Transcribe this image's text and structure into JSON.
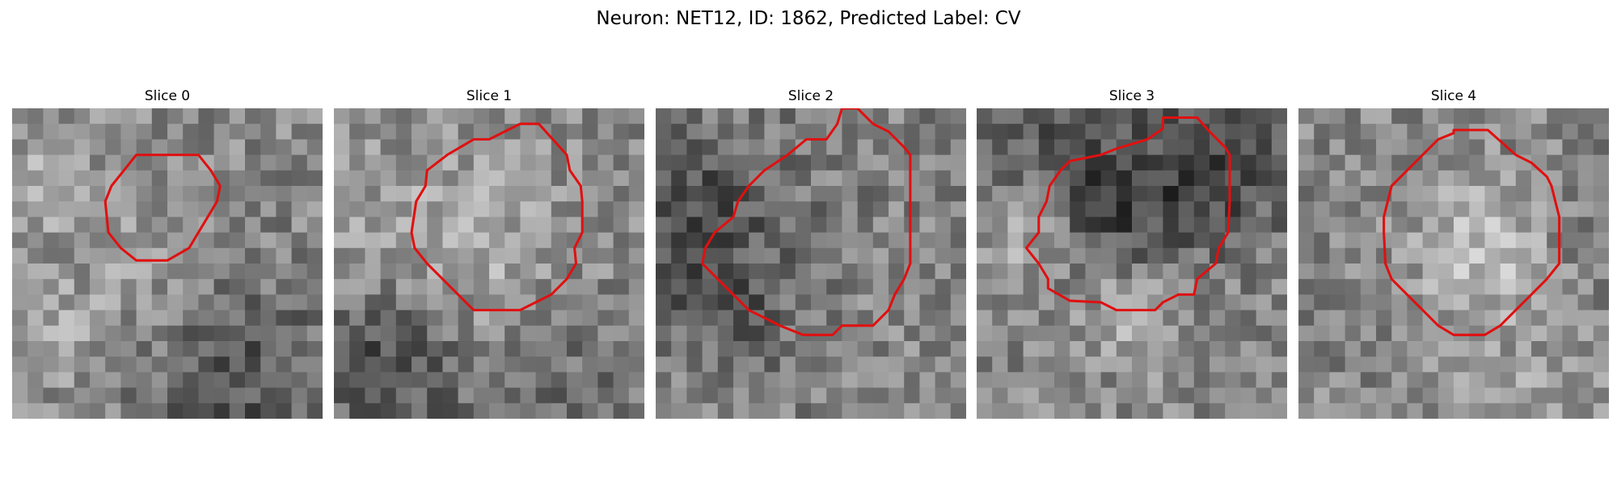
{
  "figure": {
    "title": "Neuron: NET12, ID: 1862, Predicted Label: CV",
    "panels": [
      {
        "title": "Slice 0",
        "seed": 11,
        "contour_color": "#e01010",
        "contour": [
          [
            10,
            3
          ],
          [
            12,
            3
          ],
          [
            12.8,
            4
          ],
          [
            13.4,
            5
          ],
          [
            13.2,
            6
          ],
          [
            12.6,
            7
          ],
          [
            12,
            8
          ],
          [
            11.4,
            9
          ],
          [
            10,
            9.8
          ],
          [
            8,
            9.8
          ],
          [
            7,
            9
          ],
          [
            6.2,
            8
          ],
          [
            6.1,
            7
          ],
          [
            6,
            6
          ],
          [
            6.4,
            5
          ],
          [
            7.2,
            4
          ],
          [
            8,
            3
          ]
        ]
      },
      {
        "title": "Slice 1",
        "seed": 23,
        "contour_color": "#e01010",
        "contour": [
          [
            12,
            1
          ],
          [
            13.2,
            1
          ],
          [
            15,
            3
          ],
          [
            15.2,
            4
          ],
          [
            15.9,
            5
          ],
          [
            16,
            6
          ],
          [
            16,
            8
          ],
          [
            15.5,
            9
          ],
          [
            15.6,
            10
          ],
          [
            15,
            11
          ],
          [
            14,
            12
          ],
          [
            12,
            13
          ],
          [
            9,
            13
          ],
          [
            7,
            11
          ],
          [
            6,
            10
          ],
          [
            5.2,
            9
          ],
          [
            5,
            8
          ],
          [
            5.3,
            6
          ],
          [
            5.9,
            5
          ],
          [
            6,
            4
          ],
          [
            7.3,
            3
          ],
          [
            9,
            2
          ],
          [
            10,
            2
          ]
        ]
      },
      {
        "title": "Slice 2",
        "seed": 37,
        "contour_color": "#e01010",
        "contour": [
          [
            12,
            0
          ],
          [
            13,
            0
          ],
          [
            14,
            1
          ],
          [
            15,
            1.5
          ],
          [
            16,
            2.5
          ],
          [
            16.4,
            3
          ],
          [
            16.4,
            7
          ],
          [
            16.4,
            10
          ],
          [
            16,
            11
          ],
          [
            15.4,
            12
          ],
          [
            15,
            13
          ],
          [
            14,
            14
          ],
          [
            12,
            14
          ],
          [
            11.4,
            14.6
          ],
          [
            9.5,
            14.6
          ],
          [
            8,
            14
          ],
          [
            6,
            13
          ],
          [
            5,
            12
          ],
          [
            4,
            11
          ],
          [
            3,
            10
          ],
          [
            3.2,
            9
          ],
          [
            3.8,
            8
          ],
          [
            5,
            7
          ],
          [
            5.3,
            6
          ],
          [
            6,
            5
          ],
          [
            7,
            4
          ],
          [
            8.5,
            3
          ],
          [
            9.7,
            2
          ],
          [
            11,
            2
          ],
          [
            11.7,
            1
          ]
        ]
      },
      {
        "title": "Slice 3",
        "seed": 53,
        "contour_color": "#e01010",
        "contour": [
          [
            12,
            0.6
          ],
          [
            14.2,
            0.6
          ],
          [
            15,
            1.5
          ],
          [
            16,
            2.5
          ],
          [
            16.3,
            3
          ],
          [
            16.3,
            6
          ],
          [
            16.2,
            8
          ],
          [
            15.6,
            9
          ],
          [
            15.4,
            10
          ],
          [
            14.2,
            11
          ],
          [
            14,
            12
          ],
          [
            13,
            12
          ],
          [
            12,
            12.5
          ],
          [
            11.5,
            13
          ],
          [
            9,
            13
          ],
          [
            8,
            12.5
          ],
          [
            6,
            12.4
          ],
          [
            4.6,
            11.6
          ],
          [
            4.6,
            11
          ],
          [
            4,
            10
          ],
          [
            3.2,
            9
          ],
          [
            4,
            8
          ],
          [
            4,
            7
          ],
          [
            4.5,
            6
          ],
          [
            4.7,
            5
          ],
          [
            5.4,
            4
          ],
          [
            6,
            3.4
          ],
          [
            8,
            3
          ],
          [
            9,
            2.6
          ],
          [
            11,
            2
          ],
          [
            12,
            1.3
          ]
        ]
      },
      {
        "title": "Slice 4",
        "seed": 71,
        "contour_color": "#e01010",
        "contour": [
          [
            10,
            1.4
          ],
          [
            12.2,
            1.4
          ],
          [
            14,
            3
          ],
          [
            15,
            3.5
          ],
          [
            16,
            4.4
          ],
          [
            16.3,
            5
          ],
          [
            16.8,
            7
          ],
          [
            16.8,
            10
          ],
          [
            16,
            11
          ],
          [
            15,
            12
          ],
          [
            14,
            13
          ],
          [
            13,
            14
          ],
          [
            12,
            14.6
          ],
          [
            10,
            14.6
          ],
          [
            9,
            14
          ],
          [
            8,
            13
          ],
          [
            7,
            12
          ],
          [
            6,
            11
          ],
          [
            5.6,
            10
          ],
          [
            5.5,
            8
          ],
          [
            5.5,
            7
          ],
          [
            6,
            5
          ],
          [
            7,
            4
          ],
          [
            8,
            3
          ],
          [
            9,
            2
          ],
          [
            10,
            1.6
          ]
        ]
      }
    ]
  }
}
